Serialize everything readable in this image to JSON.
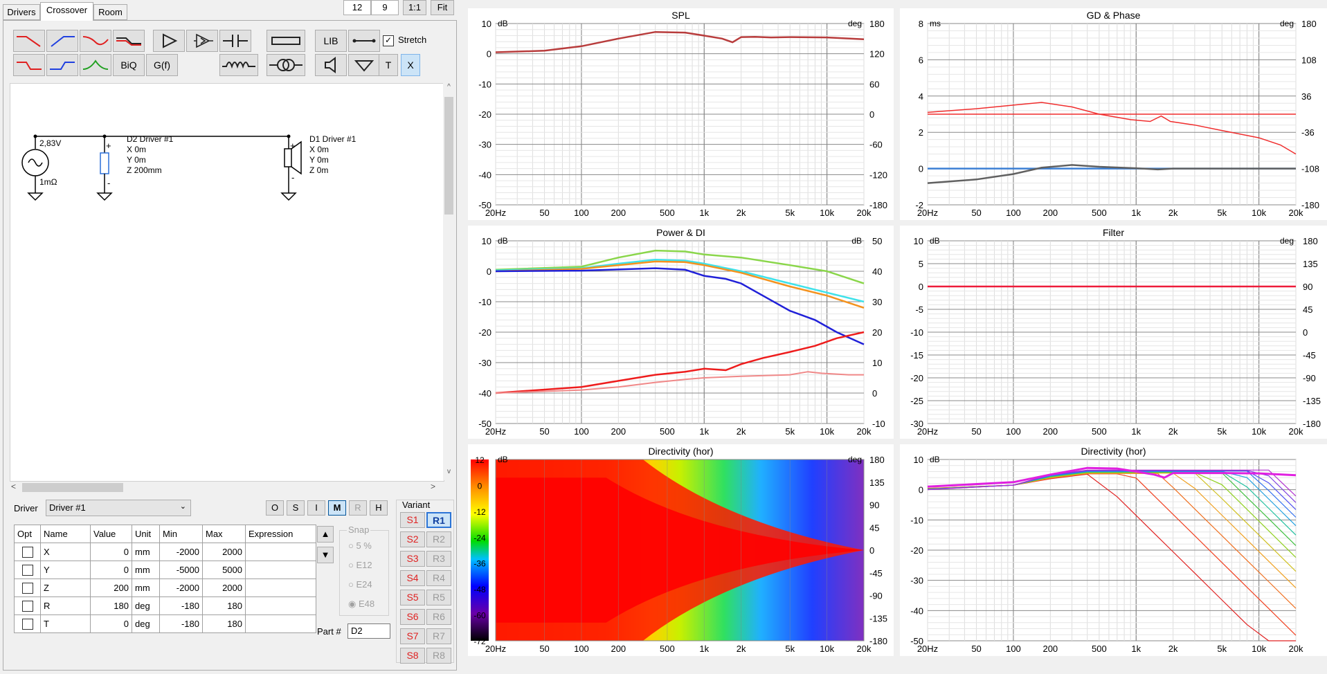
{
  "tabs": [
    "Drivers",
    "Crossover",
    "Room"
  ],
  "topbar": {
    "box1": "12",
    "box2": "9",
    "btn_ratio": "1:1",
    "btn_fit": "Fit"
  },
  "toolbar": {
    "lib": "LIB",
    "biq": "BiQ",
    "gf": "G(f)",
    "t": "T",
    "x": "X",
    "stretch_label": "Stretch"
  },
  "schematic": {
    "source_voltage": "2,83V",
    "source_resistance": "1mΩ",
    "d2_name": "D2 Driver #1",
    "d2_x": "X 0m",
    "d2_y": "Y 0m",
    "d2_z": "Z 200mm",
    "d1_name": "D1 Driver #1",
    "d1_x": "X 0m",
    "d1_y": "Y 0m",
    "d1_z": "Z 0m",
    "plus": "+",
    "minus": "-"
  },
  "driver_row": {
    "label": "Driver",
    "value": "Driver #1",
    "view_buttons": [
      "O",
      "S",
      "I",
      "M",
      "R",
      "H"
    ],
    "selected_view": "M"
  },
  "table": {
    "headers": [
      "Opt",
      "Name",
      "Value",
      "Unit",
      "Min",
      "Max",
      "Expression"
    ],
    "rows": [
      [
        "X",
        "0",
        "mm",
        "-2000",
        "2000",
        ""
      ],
      [
        "Y",
        "0",
        "mm",
        "-5000",
        "5000",
        ""
      ],
      [
        "Z",
        "200",
        "mm",
        "-2000",
        "2000",
        ""
      ],
      [
        "R",
        "180",
        "deg",
        "-180",
        "180",
        ""
      ],
      [
        "T",
        "0",
        "deg",
        "-180",
        "180",
        ""
      ]
    ]
  },
  "snap": {
    "title": "Snap",
    "options": [
      "5 %",
      "E12",
      "E24",
      "E48"
    ],
    "selected": "E48"
  },
  "variant": {
    "title": "Variant",
    "s": [
      "S1",
      "S2",
      "S3",
      "S4",
      "S5",
      "S6",
      "S7",
      "S8"
    ],
    "r": [
      "R1",
      "R2",
      "R3",
      "R4",
      "R5",
      "R6",
      "R7",
      "R8"
    ],
    "selected": "R1"
  },
  "part": {
    "label": "Part #",
    "value": "D2"
  },
  "graphs": {
    "freq_ticks": [
      "20Hz",
      "50",
      "100",
      "200",
      "500",
      "1k",
      "2k",
      "5k",
      "10k",
      "20k"
    ],
    "spl": {
      "title": "SPL",
      "left_unit": "dB",
      "right_unit": "deg",
      "left_ticks": [
        "10",
        "0",
        "-10",
        "-20",
        "-30",
        "-40",
        "-50"
      ],
      "right_ticks": [
        "180",
        "120",
        "60",
        "0",
        "-60",
        "-120",
        "-180"
      ]
    },
    "gd": {
      "title": "GD & Phase",
      "left_unit": "ms",
      "right_unit": "deg",
      "left_ticks": [
        "8",
        "6",
        "4",
        "2",
        "0",
        "-2"
      ],
      "right_ticks": [
        "180",
        "108",
        "36",
        "-36",
        "-108",
        "-180"
      ]
    },
    "power": {
      "title": "Power & DI",
      "left_unit": "dB",
      "right_unit": "dB",
      "left_ticks": [
        "10",
        "0",
        "-10",
        "-20",
        "-30",
        "-40",
        "-50"
      ],
      "right_ticks": [
        "50",
        "40",
        "30",
        "20",
        "10",
        "0",
        "-10"
      ]
    },
    "filter": {
      "title": "Filter",
      "left_unit": "dB",
      "right_unit": "deg",
      "left_ticks": [
        "10",
        "5",
        "0",
        "-5",
        "-10",
        "-15",
        "-20",
        "-25",
        "-30"
      ],
      "right_ticks": [
        "180",
        "135",
        "90",
        "45",
        "0",
        "-45",
        "-90",
        "-135",
        "-180"
      ]
    },
    "dir_map": {
      "title": "Directivity (hor)",
      "left_unit": "dB",
      "right_unit": "deg",
      "scale_ticks": [
        "12",
        "0",
        "-12",
        "-24",
        "-36",
        "-48",
        "-60",
        "-72"
      ],
      "right_ticks": [
        "180",
        "135",
        "90",
        "45",
        "0",
        "-45",
        "-90",
        "-135",
        "-180"
      ]
    },
    "dir_lines": {
      "title": "Directivity (hor)",
      "left_unit": "dB",
      "left_ticks": [
        "10",
        "0",
        "-10",
        "-20",
        "-30",
        "-40",
        "-50"
      ]
    }
  },
  "colors": {
    "spl": "#b83c3c",
    "phase": "#f02c2c",
    "gd": "#606060",
    "gdline": "#3b7fd4",
    "green": "#8ad64a",
    "cyan": "#3ee2ea",
    "orange": "#f4921e",
    "blue": "#2020d8",
    "red": "#ee1c1c",
    "pink": "#f08888",
    "filter": "#ee1c3a",
    "magenta": "#e020e0"
  }
}
